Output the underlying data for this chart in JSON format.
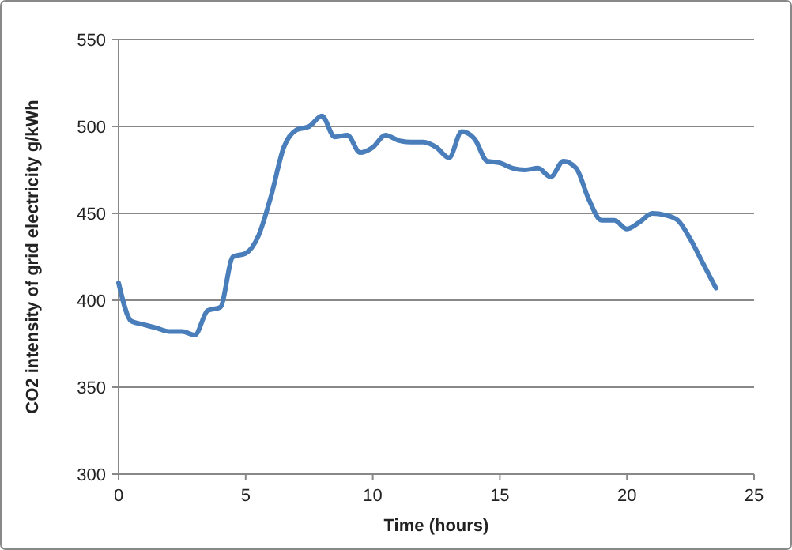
{
  "chart_data": {
    "type": "line",
    "xlabel": "Time (hours)",
    "ylabel": "CO2 intensity of grid electricity g/kWh",
    "xlim": [
      0,
      25
    ],
    "xticks": [
      0,
      5,
      10,
      15,
      20,
      25
    ],
    "ylim": [
      300,
      550
    ],
    "yticks": [
      300,
      350,
      400,
      450,
      500,
      550
    ],
    "grid": "y",
    "marker": "none",
    "line_style": "solid",
    "series": [
      {
        "color": "#4a7ebb",
        "x": [
          0,
          0.5,
          1,
          1.5,
          2,
          2.5,
          3,
          3.5,
          4,
          4.5,
          5,
          5.5,
          6,
          6.5,
          7,
          7.5,
          8,
          8.5,
          9,
          9.5,
          10,
          10.5,
          11,
          11.5,
          12,
          12.5,
          13,
          13.5,
          14,
          14.5,
          15,
          15.5,
          16,
          16.5,
          17,
          17.5,
          18,
          18.5,
          19,
          19.5,
          20,
          20.5,
          21,
          21.5,
          22,
          22.5,
          23,
          23.5
        ],
        "values": [
          410,
          388,
          386,
          384,
          382,
          382,
          380,
          394,
          396,
          425,
          427,
          437,
          460,
          488,
          498,
          500,
          506,
          494,
          495,
          485,
          488,
          495,
          492,
          491,
          491,
          488,
          482,
          497,
          493,
          480,
          479,
          476,
          475,
          476,
          471,
          480,
          476,
          458,
          446,
          446,
          441,
          445,
          450,
          449,
          446,
          435,
          421,
          407
        ]
      }
    ]
  }
}
